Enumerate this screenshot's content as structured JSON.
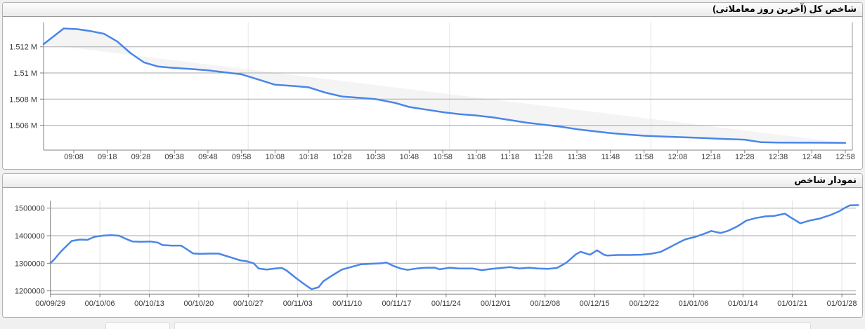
{
  "page": {
    "background": "#f0f0f0"
  },
  "panels": [
    {
      "title": "شاخص کل (آخرین روز معاملاتی)"
    },
    {
      "title": "نمودار شاخص"
    }
  ],
  "colors": {
    "line": "#4a86e8",
    "area_fill": "#f4f4f4",
    "grid_major": "#a9a9a9",
    "grid_minor": "#e7e7e7",
    "axis": "#808080",
    "tick_text": "#3a3a3a"
  },
  "chart_data": [
    {
      "type": "area",
      "title": "شاخص کل (آخرین روز معاملاتی)",
      "legend": "none",
      "grid": "horizontal-major, faint hourly vertical",
      "x_tick_labels": [
        "09:08",
        "09:18",
        "09:28",
        "09:38",
        "09:48",
        "09:58",
        "10:08",
        "10:18",
        "10:28",
        "10:38",
        "10:48",
        "10:58",
        "11:08",
        "11:18",
        "11:28",
        "11:38",
        "11:48",
        "11:58",
        "12:08",
        "12:18",
        "12:28",
        "12:38",
        "12:48",
        "12:58"
      ],
      "y_ticks": [
        {
          "label": "1.512 M",
          "value": 1512000
        },
        {
          "label": "1.51 M",
          "value": 1510000
        },
        {
          "label": "1.508 M",
          "value": 1508000
        },
        {
          "label": "1.506 M",
          "value": 1506000
        }
      ],
      "xlim": [
        "08:59",
        "12:58"
      ],
      "ylim": [
        1504100,
        1513900
      ],
      "fill_between_line_and_chord": true,
      "series": [
        {
          "name": "index-intraday",
          "points": [
            [
              "08:59",
              1512200
            ],
            [
              "09:05",
              1513400
            ],
            [
              "09:09",
              1513350
            ],
            [
              "09:13",
              1513200
            ],
            [
              "09:17",
              1513000
            ],
            [
              "09:21",
              1512400
            ],
            [
              "09:25",
              1511500
            ],
            [
              "09:29",
              1510800
            ],
            [
              "09:33",
              1510500
            ],
            [
              "09:37",
              1510400
            ],
            [
              "09:43",
              1510300
            ],
            [
              "09:48",
              1510200
            ],
            [
              "09:53",
              1510050
            ],
            [
              "09:58",
              1509900
            ],
            [
              "10:03",
              1509500
            ],
            [
              "10:08",
              1509100
            ],
            [
              "10:14",
              1509000
            ],
            [
              "10:18",
              1508900
            ],
            [
              "10:23",
              1508500
            ],
            [
              "10:28",
              1508200
            ],
            [
              "10:33",
              1508100
            ],
            [
              "10:38",
              1508000
            ],
            [
              "10:44",
              1507700
            ],
            [
              "10:48",
              1507400
            ],
            [
              "10:53",
              1507200
            ],
            [
              "10:58",
              1507000
            ],
            [
              "11:03",
              1506850
            ],
            [
              "11:08",
              1506750
            ],
            [
              "11:13",
              1506600
            ],
            [
              "11:18",
              1506400
            ],
            [
              "11:23",
              1506200
            ],
            [
              "11:28",
              1506050
            ],
            [
              "11:33",
              1505900
            ],
            [
              "11:38",
              1505700
            ],
            [
              "11:43",
              1505550
            ],
            [
              "11:48",
              1505400
            ],
            [
              "11:53",
              1505300
            ],
            [
              "11:58",
              1505200
            ],
            [
              "12:03",
              1505150
            ],
            [
              "12:08",
              1505100
            ],
            [
              "12:13",
              1505050
            ],
            [
              "12:18",
              1505000
            ],
            [
              "12:23",
              1504950
            ],
            [
              "12:28",
              1504900
            ],
            [
              "12:33",
              1504700
            ],
            [
              "12:38",
              1504680
            ],
            [
              "12:48",
              1504670
            ],
            [
              "12:58",
              1504660
            ]
          ]
        }
      ]
    },
    {
      "type": "line",
      "title": "نمودار شاخص",
      "legend": "none",
      "grid": "horizontal-major, vertical weekly minor",
      "x_tick_labels": [
        "00/09/29",
        "00/10/06",
        "00/10/13",
        "00/10/20",
        "00/10/27",
        "00/11/03",
        "00/11/10",
        "00/11/17",
        "00/11/24",
        "00/12/01",
        "00/12/08",
        "00/12/15",
        "00/12/22",
        "01/01/06",
        "01/01/14",
        "01/01/21",
        "01/01/28"
      ],
      "x_unit": "weeks-from-00/09/29",
      "y_ticks": [
        {
          "label": "1500000",
          "value": 1500000
        },
        {
          "label": "1400000",
          "value": 1400000
        },
        {
          "label": "1300000",
          "value": 1300000
        },
        {
          "label": "1200000",
          "value": 1200000
        }
      ],
      "ylim": [
        1180000,
        1525000
      ],
      "series": [
        {
          "name": "index-history",
          "points": [
            [
              0,
              1300000
            ],
            [
              0.09,
              1316000
            ],
            [
              0.18,
              1336000
            ],
            [
              0.27,
              1353000
            ],
            [
              0.43,
              1381000
            ],
            [
              0.6,
              1386000
            ],
            [
              0.75,
              1385000
            ],
            [
              0.89,
              1396000
            ],
            [
              1.05,
              1400000
            ],
            [
              1.22,
              1402000
            ],
            [
              1.39,
              1400000
            ],
            [
              1.52,
              1389000
            ],
            [
              1.66,
              1379000
            ],
            [
              1.84,
              1378000
            ],
            [
              2.03,
              1379000
            ],
            [
              2.17,
              1375000
            ],
            [
              2.27,
              1366000
            ],
            [
              2.45,
              1364000
            ],
            [
              2.64,
              1364000
            ],
            [
              2.74,
              1353000
            ],
            [
              2.88,
              1336000
            ],
            [
              3.02,
              1334000
            ],
            [
              3.21,
              1335000
            ],
            [
              3.4,
              1335000
            ],
            [
              3.49,
              1330000
            ],
            [
              3.69,
              1319000
            ],
            [
              3.83,
              1311000
            ],
            [
              3.97,
              1307000
            ],
            [
              4.11,
              1300000
            ],
            [
              4.21,
              1281000
            ],
            [
              4.37,
              1277000
            ],
            [
              4.54,
              1281000
            ],
            [
              4.68,
              1283000
            ],
            [
              4.78,
              1273000
            ],
            [
              4.96,
              1247000
            ],
            [
              5.15,
              1222000
            ],
            [
              5.28,
              1206000
            ],
            [
              5.42,
              1213000
            ],
            [
              5.52,
              1235000
            ],
            [
              5.7,
              1256000
            ],
            [
              5.89,
              1277000
            ],
            [
              6.09,
              1287000
            ],
            [
              6.27,
              1296000
            ],
            [
              6.45,
              1298000
            ],
            [
              6.7,
              1300000
            ],
            [
              6.79,
              1303000
            ],
            [
              6.94,
              1290000
            ],
            [
              7.08,
              1281000
            ],
            [
              7.22,
              1276000
            ],
            [
              7.4,
              1281000
            ],
            [
              7.59,
              1284000
            ],
            [
              7.77,
              1284000
            ],
            [
              7.87,
              1278000
            ],
            [
              8.07,
              1284000
            ],
            [
              8.26,
              1281000
            ],
            [
              8.54,
              1281000
            ],
            [
              8.72,
              1275000
            ],
            [
              8.92,
              1280000
            ],
            [
              9.11,
              1283000
            ],
            [
              9.29,
              1286000
            ],
            [
              9.49,
              1281000
            ],
            [
              9.67,
              1284000
            ],
            [
              9.86,
              1281000
            ],
            [
              10.06,
              1280000
            ],
            [
              10.24,
              1283000
            ],
            [
              10.43,
              1302000
            ],
            [
              10.62,
              1332000
            ],
            [
              10.72,
              1342000
            ],
            [
              10.85,
              1334000
            ],
            [
              10.91,
              1331000
            ],
            [
              11.05,
              1347000
            ],
            [
              11.19,
              1331000
            ],
            [
              11.26,
              1328000
            ],
            [
              11.48,
              1330000
            ],
            [
              11.7,
              1330000
            ],
            [
              11.94,
              1331000
            ],
            [
              12.13,
              1334000
            ],
            [
              12.33,
              1341000
            ],
            [
              12.51,
              1357000
            ],
            [
              12.7,
              1375000
            ],
            [
              12.84,
              1387000
            ],
            [
              13.04,
              1396000
            ],
            [
              13.22,
              1407000
            ],
            [
              13.36,
              1417000
            ],
            [
              13.55,
              1410000
            ],
            [
              13.69,
              1417000
            ],
            [
              13.89,
              1434000
            ],
            [
              14.07,
              1455000
            ],
            [
              14.26,
              1464000
            ],
            [
              14.45,
              1470000
            ],
            [
              14.64,
              1472000
            ],
            [
              14.74,
              1476000
            ],
            [
              14.85,
              1480000
            ],
            [
              14.95,
              1468000
            ],
            [
              15.16,
              1445000
            ],
            [
              15.35,
              1455000
            ],
            [
              15.55,
              1462000
            ],
            [
              15.77,
              1475000
            ],
            [
              15.94,
              1488000
            ],
            [
              16.06,
              1501000
            ],
            [
              16.16,
              1510000
            ],
            [
              16.33,
              1511000
            ]
          ]
        }
      ]
    }
  ]
}
